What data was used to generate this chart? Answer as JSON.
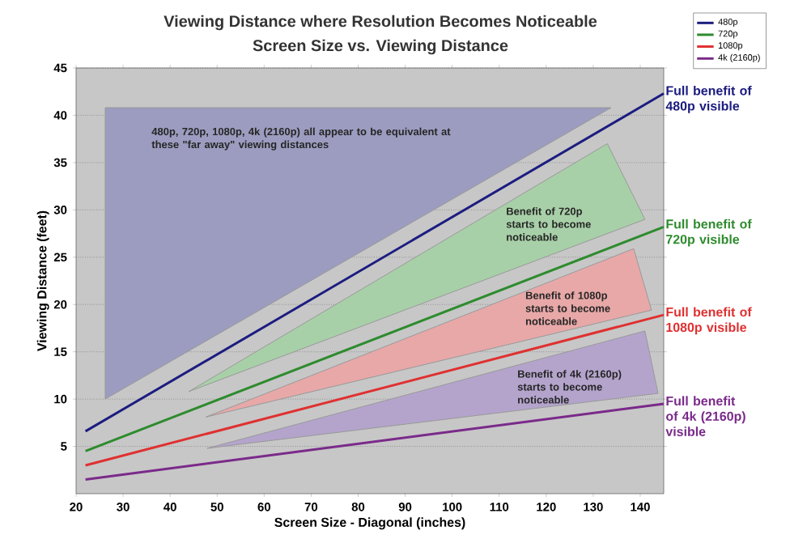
{
  "chart_data": {
    "type": "line",
    "title": "Viewing Distance where Resolution Becomes Noticeable",
    "subtitle": "Screen Size vs. Viewing Distance",
    "xlabel": "Screen Size - Diagonal (inches)",
    "ylabel": "Viewing Distance (feet)",
    "xlim": [
      20,
      145
    ],
    "xticks": [
      20,
      30,
      40,
      50,
      60,
      70,
      80,
      90,
      100,
      110,
      120,
      130,
      140
    ],
    "ylim": [
      0,
      45
    ],
    "yticks": [
      5,
      10,
      15,
      20,
      25,
      30,
      35,
      40,
      45
    ],
    "grid": "y",
    "legend": "top right",
    "series": [
      {
        "type": "area",
        "color": "#9c9cc0",
        "x": [
          26.2,
          26.2,
          133.8
        ],
        "values": [
          10,
          40.8,
          40.8
        ]
      },
      {
        "type": "area",
        "color": "#a8d0a8",
        "x": [
          44,
          133,
          141
        ],
        "values": [
          10.8,
          37,
          29
        ]
      },
      {
        "type": "area",
        "color": "#e8a8a8",
        "x": [
          47.6,
          138.6,
          142.4
        ],
        "values": [
          8.1,
          25.9,
          19.4
        ]
      },
      {
        "type": "area",
        "color": "#b4a4cc",
        "x": [
          47.9,
          141,
          143.8
        ],
        "values": [
          4.8,
          17.2,
          10.6
        ]
      },
      {
        "name": "480p",
        "color": "#1c1c80",
        "x": [
          22,
          145
        ],
        "values": [
          6.6,
          42.3
        ]
      },
      {
        "name": "720p",
        "color": "#2e8b2e",
        "x": [
          22,
          145
        ],
        "values": [
          4.5,
          28.2
        ]
      },
      {
        "name": "1080p",
        "color": "#e03030",
        "x": [
          22,
          145
        ],
        "values": [
          3.0,
          18.9
        ]
      },
      {
        "name": "4k (2160p)",
        "color": "#7a2a8a",
        "x": [
          22,
          145
        ],
        "values": [
          1.5,
          9.5
        ]
      }
    ],
    "annotations": [
      "480p, 720p, 1080p, 4k (2160p) all appear to be equivalent at these \"far away\" viewing distances",
      "Benefit of 720p starts to become noticeable",
      "Benefit of 1080p starts to become noticeable",
      "Benefit of 4k (2160p) starts to become noticeable",
      "Full benefit of 480p visible",
      "Full benefit of 720p visible",
      "Full benefit of 1080p visible",
      "Full benefit of 4k (2160p) visible"
    ]
  }
}
